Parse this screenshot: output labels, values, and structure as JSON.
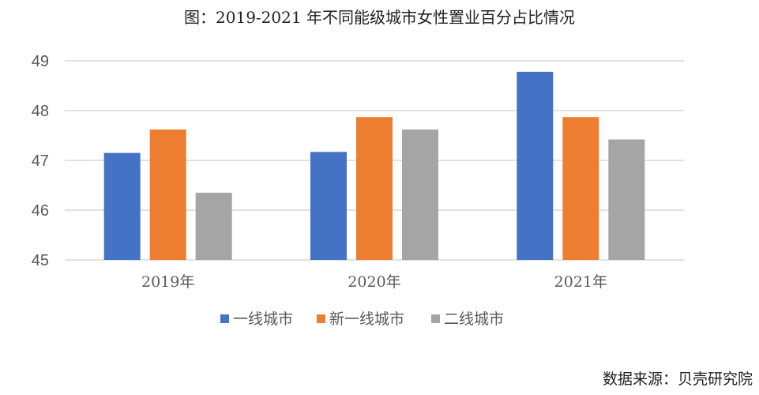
{
  "title": "图：2019-2021 年不同能级城市女性置业百分占比情况",
  "source": "数据来源：贝壳研究院",
  "chart_data": {
    "type": "bar",
    "categories": [
      "2019年",
      "2020年",
      "2021年"
    ],
    "series": [
      {
        "name": "一线城市",
        "color": "#4472C4",
        "values": [
          47.15,
          47.17,
          48.78
        ]
      },
      {
        "name": "新一线城市",
        "color": "#ED7D31",
        "values": [
          47.62,
          47.87,
          47.87
        ]
      },
      {
        "name": "二线城市",
        "color": "#A5A5A5",
        "values": [
          46.35,
          47.62,
          47.42
        ]
      }
    ],
    "ylim": [
      45,
      49
    ],
    "yticks": [
      "45",
      "46",
      "47",
      "48",
      "49"
    ],
    "grid": true,
    "legend": "bottom"
  }
}
